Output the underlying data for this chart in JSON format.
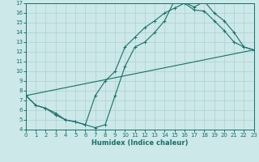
{
  "xlabel": "Humidex (Indice chaleur)",
  "xlim": [
    0,
    23
  ],
  "ylim": [
    4,
    17
  ],
  "xticks": [
    0,
    1,
    2,
    3,
    4,
    5,
    6,
    7,
    8,
    9,
    10,
    11,
    12,
    13,
    14,
    15,
    16,
    17,
    18,
    19,
    20,
    21,
    22,
    23
  ],
  "yticks": [
    4,
    5,
    6,
    7,
    8,
    9,
    10,
    11,
    12,
    13,
    14,
    15,
    16,
    17
  ],
  "bg_color": "#cce8e8",
  "line_color": "#1a6e6a",
  "grid_color": "#aed0d0",
  "line1_x": [
    0,
    1,
    2,
    3,
    4,
    5,
    6,
    7,
    8,
    9,
    10,
    11,
    12,
    13,
    14,
    15,
    16,
    17,
    18,
    19,
    20,
    21,
    22,
    23
  ],
  "line1_y": [
    7.5,
    6.5,
    6.2,
    5.7,
    5.0,
    4.8,
    4.5,
    4.2,
    4.5,
    7.5,
    10.5,
    12.5,
    13.0,
    14.0,
    15.2,
    17.3,
    17.1,
    16.6,
    17.2,
    16.0,
    15.2,
    14.0,
    12.5,
    12.2
  ],
  "line2_x": [
    0,
    1,
    2,
    3,
    4,
    5,
    6,
    7,
    8,
    9,
    10,
    11,
    12,
    13,
    14,
    15,
    16,
    17,
    18,
    19,
    20,
    21,
    22,
    23
  ],
  "line2_y": [
    7.5,
    6.5,
    6.2,
    5.5,
    5.0,
    4.8,
    4.5,
    7.5,
    9.0,
    10.0,
    12.5,
    13.5,
    14.5,
    15.2,
    16.0,
    16.5,
    17.0,
    16.3,
    16.2,
    15.2,
    14.2,
    13.0,
    12.5,
    12.2
  ],
  "line3_x": [
    0,
    23
  ],
  "line3_y": [
    7.5,
    12.2
  ]
}
